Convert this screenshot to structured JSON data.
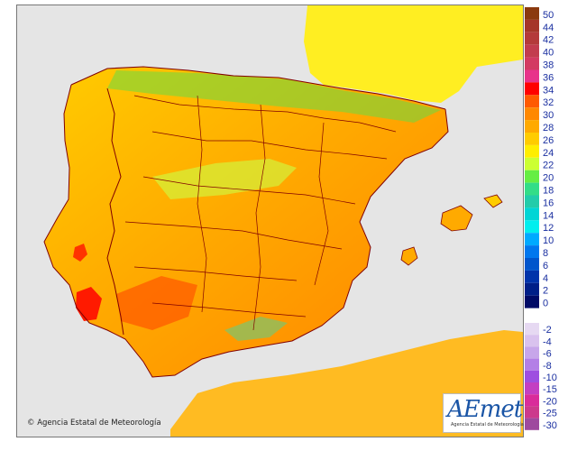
{
  "copyright": "© Agencia Estatal de Meteorología",
  "logo": {
    "wordmark": "AEmet",
    "subtitle": "Agencia Estatal de Meteorología"
  },
  "colors": {
    "sea": "#e5e5e5",
    "land_foreign": "#ffff33",
    "border": "#800000"
  },
  "legend": {
    "positive": [
      {
        "label": "50",
        "color": "#8b3a0e"
      },
      {
        "label": "44",
        "color": "#a5352a"
      },
      {
        "label": "42",
        "color": "#b43a3a"
      },
      {
        "label": "40",
        "color": "#c23c4e"
      },
      {
        "label": "38",
        "color": "#d33a62"
      },
      {
        "label": "36",
        "color": "#e8338a"
      },
      {
        "label": "34",
        "color": "#ff0000"
      },
      {
        "label": "32",
        "color": "#ff5a00"
      },
      {
        "label": "30",
        "color": "#ff8800"
      },
      {
        "label": "28",
        "color": "#ffaa00"
      },
      {
        "label": "26",
        "color": "#ffcc00"
      },
      {
        "label": "24",
        "color": "#ffee00"
      },
      {
        "label": "22",
        "color": "#ccff33"
      },
      {
        "label": "20",
        "color": "#66ee44"
      },
      {
        "label": "18",
        "color": "#33dd88"
      },
      {
        "label": "16",
        "color": "#22ccaa"
      },
      {
        "label": "14",
        "color": "#00d5d5"
      },
      {
        "label": "12",
        "color": "#00eeee"
      },
      {
        "label": "10",
        "color": "#00aaff"
      },
      {
        "label": "8",
        "color": "#0077ee"
      },
      {
        "label": "6",
        "color": "#0055cc"
      },
      {
        "label": "4",
        "color": "#0033aa"
      },
      {
        "label": "2",
        "color": "#001f88"
      },
      {
        "label": "0",
        "color": "#000a66"
      }
    ],
    "negative": [
      {
        "label": "-2",
        "color": "#e6d9f2"
      },
      {
        "label": "-4",
        "color": "#d9c2ee"
      },
      {
        "label": "-6",
        "color": "#c7a6ea"
      },
      {
        "label": "-8",
        "color": "#b37fe6"
      },
      {
        "label": "-10",
        "color": "#9e4ee0"
      },
      {
        "label": "-15",
        "color": "#c33fc2"
      },
      {
        "label": "-20",
        "color": "#d92c9a"
      },
      {
        "label": "-25",
        "color": "#cc3a8c"
      },
      {
        "label": "-30",
        "color": "#9e4a9e"
      }
    ]
  }
}
